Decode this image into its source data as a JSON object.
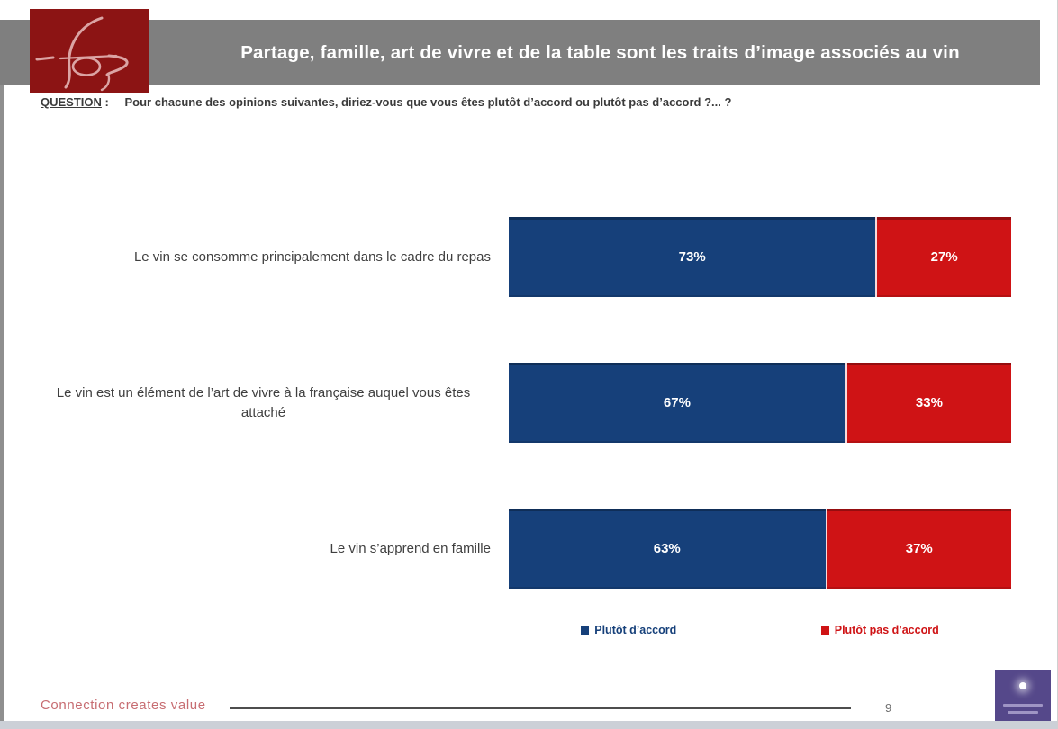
{
  "header": {
    "title": "Partage, famille, art de vivre et de la table sont les traits d’image associés au vin",
    "logo_name": "ifop"
  },
  "question": {
    "label": "QUESTION",
    "colon": " :",
    "text": "Pour chacune des opinions suivantes, diriez-vous que vous êtes plutôt d’accord ou plutôt pas d’accord ?... ?"
  },
  "chart_data": {
    "type": "bar",
    "orientation": "horizontal",
    "stacked": true,
    "categories": [
      "Le vin se consomme principalement dans le cadre du repas",
      "Le vin est un élément de l’art de vivre à la française auquel vous êtes attaché",
      "Le vin s’apprend en famille"
    ],
    "series": [
      {
        "name": "Plutôt d’accord",
        "color": "#16407a",
        "values": [
          73,
          67,
          63
        ],
        "labels": [
          "73%",
          "67%",
          "63%"
        ]
      },
      {
        "name": "Plutôt pas d’accord",
        "color": "#cf1315",
        "values": [
          27,
          33,
          37
        ],
        "labels": [
          "27%",
          "33%",
          "37%"
        ]
      }
    ],
    "xlim": [
      0,
      100
    ],
    "value_label_format": "percent",
    "legend_position": "bottom",
    "grid": false
  },
  "footer": {
    "slogan": "Connection creates value",
    "page_number": "9"
  },
  "colors": {
    "agree_blue": "#16407a",
    "disagree_red": "#cf1315",
    "header_gray": "#7f7f7f",
    "logo_red": "#8c1414",
    "slogan_pink": "#c76d72",
    "corner_purple": "#55488a"
  }
}
